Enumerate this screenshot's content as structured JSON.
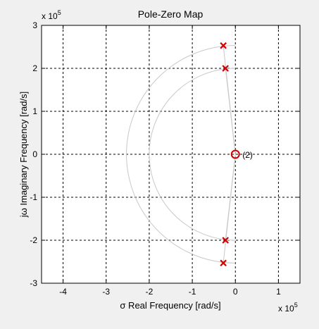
{
  "chart_data": {
    "type": "scatter",
    "title": "Pole-Zero Map",
    "xlabel": "σ Real Frequency [rad/s]",
    "ylabel": "jω Imaginary Frequency [rad/s]",
    "x_multiplier_label": "x 10",
    "y_multiplier_label": "x 10",
    "multiplier_exponent": "5",
    "xlim": [
      -4.5,
      1.5
    ],
    "ylim": [
      -3,
      3
    ],
    "xticks": [
      -4,
      -3,
      -2,
      -1,
      0,
      1
    ],
    "yticks": [
      -3,
      -2,
      -1,
      0,
      1,
      2,
      3
    ],
    "grid": true,
    "poles": [
      {
        "x": -0.28,
        "y": 2.53
      },
      {
        "x": -0.23,
        "y": 2.0
      },
      {
        "x": -0.23,
        "y": -2.0
      },
      {
        "x": -0.28,
        "y": -2.53
      }
    ],
    "zeros": [
      {
        "x": 0,
        "y": 0,
        "multiplicity_label": "(2)"
      }
    ],
    "marker_color": "#d40000",
    "constant_frequency_arcs": [
      2.0,
      2.53
    ]
  }
}
